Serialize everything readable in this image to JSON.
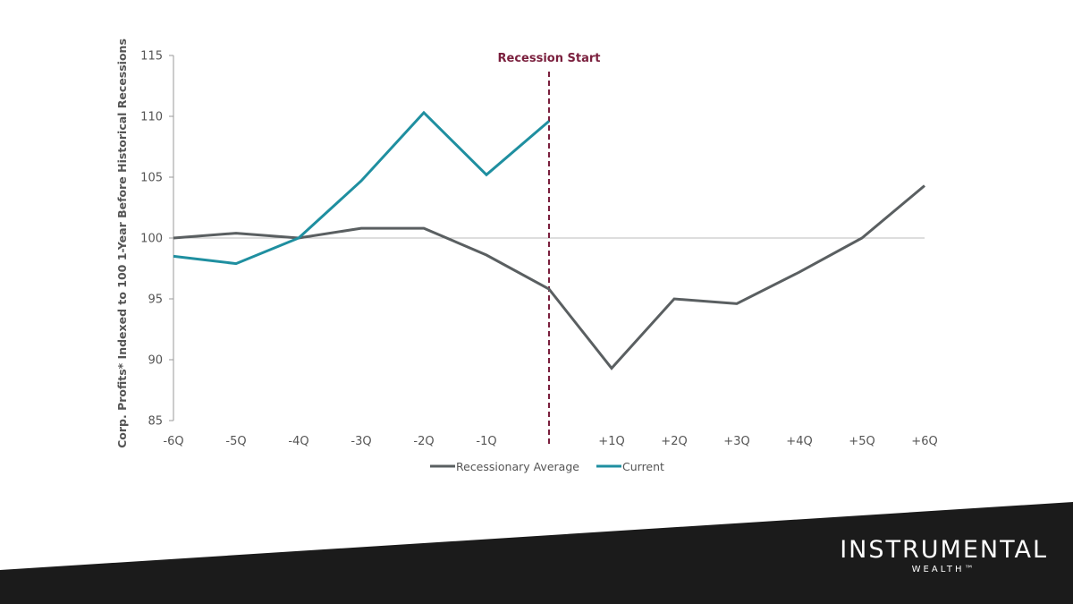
{
  "chart_data": {
    "type": "line",
    "ylabel": "Corp. Profits* Indexed to 100 1-Year Before Historical Recessions",
    "xlabel": "",
    "ylim": [
      85,
      115
    ],
    "yticks": [
      85,
      90,
      95,
      100,
      105,
      110,
      115
    ],
    "categories": [
      "-6Q",
      "-5Q",
      "-4Q",
      "-3Q",
      "-2Q",
      "-1Q",
      "0",
      "+1Q",
      "+2Q",
      "+3Q",
      "+4Q",
      "+5Q",
      "+6Q"
    ],
    "tick_labels": [
      "-6Q",
      "-5Q",
      "-4Q",
      "-3Q",
      "-2Q",
      "-1Q",
      "",
      "+1Q",
      "+2Q",
      "+3Q",
      "+4Q",
      "+5Q",
      "+6Q"
    ],
    "reference_line": 100,
    "annotation": {
      "label": "Recession Start",
      "at": "0"
    },
    "series": [
      {
        "name": "Recessionary Average",
        "color": "#5a5f61",
        "values": [
          100.0,
          100.4,
          100.0,
          100.8,
          100.8,
          98.6,
          95.8,
          89.3,
          95.0,
          94.6,
          97.2,
          100.0,
          104.3
        ]
      },
      {
        "name": "Current",
        "color": "#1f8fa0",
        "values": [
          98.5,
          97.9,
          100.0,
          104.7,
          110.3,
          105.2,
          109.6,
          null,
          null,
          null,
          null,
          null,
          null
        ]
      }
    ],
    "legend_position": "bottom-center"
  },
  "brand": {
    "name": "INSTRUMENTAL",
    "sub": "WEALTH™"
  },
  "colors": {
    "footer": "#1b1b1b",
    "annotation": "#7a1f3d",
    "axis": "#999999"
  }
}
